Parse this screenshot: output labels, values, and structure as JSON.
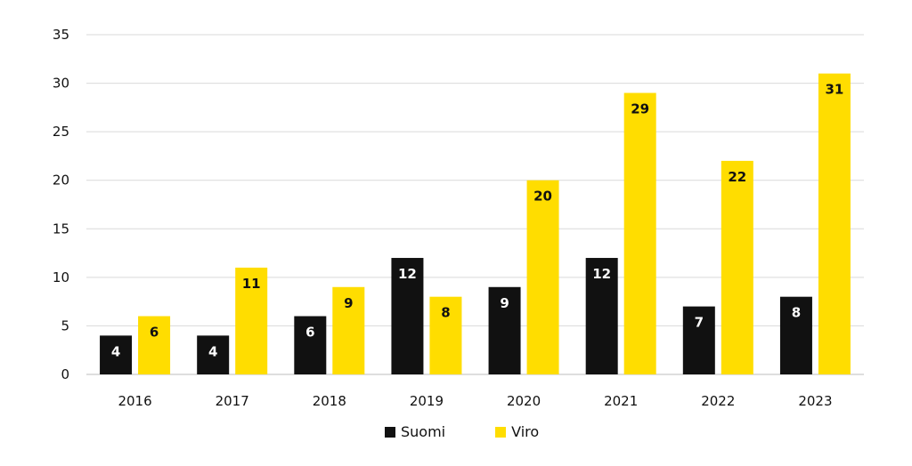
{
  "chart_data": {
    "type": "bar",
    "title": "",
    "xlabel": "",
    "ylabel": "",
    "categories": [
      "2016",
      "2017",
      "2018",
      "2019",
      "2020",
      "2021",
      "2022",
      "2023"
    ],
    "ylim": [
      0,
      35
    ],
    "yticks": [
      "0",
      "5",
      "10",
      "15",
      "20",
      "25",
      "30",
      "35"
    ],
    "grid": true,
    "legend_position": "bottom-center",
    "series": [
      {
        "name": "Suomi",
        "color": "#111111",
        "label_color": "#ffffff",
        "values": [
          4,
          4,
          6,
          12,
          9,
          12,
          7,
          8
        ]
      },
      {
        "name": "Viro",
        "color": "#ffdd00",
        "label_color": "#111111",
        "values": [
          6,
          11,
          9,
          8,
          20,
          29,
          22,
          31
        ]
      }
    ]
  }
}
